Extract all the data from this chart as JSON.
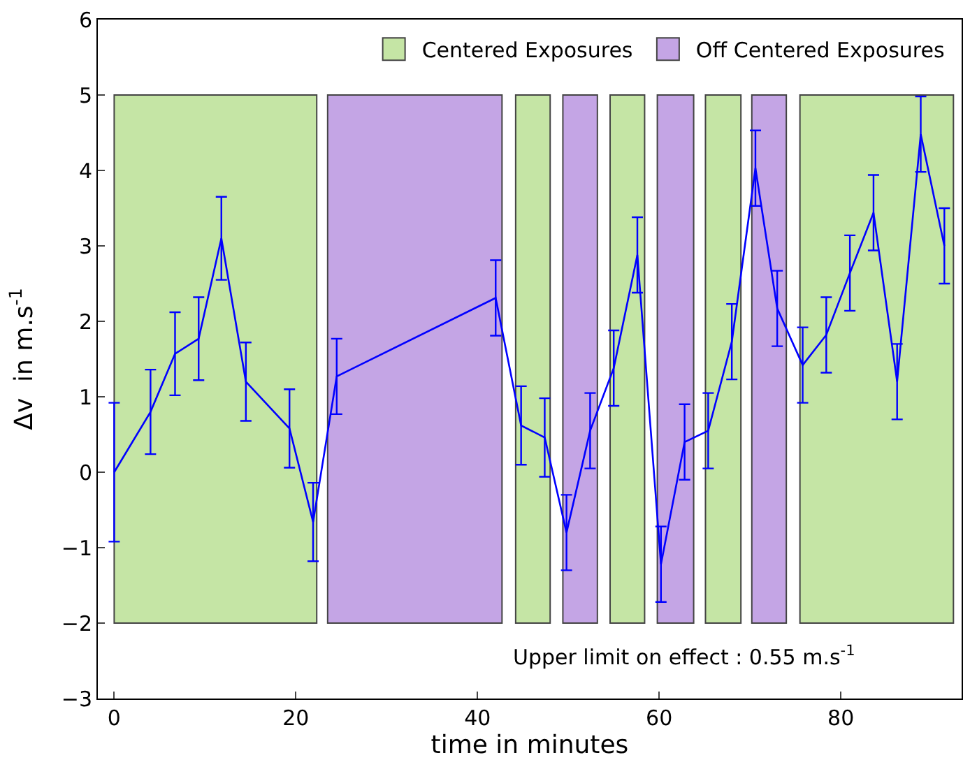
{
  "chart_data": {
    "type": "line",
    "xlabel": "time in minutes",
    "ylabel": "Δv  in m.s$^{-1}$",
    "x": [
      0,
      4,
      6.7,
      9.3,
      11.8,
      14.5,
      19.3,
      21.9,
      24.5,
      42,
      44.8,
      47.4,
      49.8,
      52.4,
      55,
      57.6,
      60.2,
      62.8,
      65.4,
      68,
      70.6,
      73,
      75.8,
      78.4,
      81,
      83.6,
      86.2,
      88.8,
      91.4
    ],
    "series": [
      {
        "color": "#0000ff",
        "values": [
          0,
          0.8,
          1.57,
          1.77,
          3.1,
          1.2,
          0.58,
          -0.66,
          1.27,
          2.31,
          0.62,
          0.46,
          -0.8,
          0.55,
          1.38,
          2.88,
          -1.22,
          0.4,
          0.55,
          1.73,
          4.03,
          2.17,
          1.42,
          1.82,
          2.64,
          3.44,
          1.2,
          4.48,
          3.0
        ],
        "errors": [
          0.92,
          0.56,
          0.55,
          0.55,
          0.55,
          0.52,
          0.52,
          0.52,
          0.5,
          0.5,
          0.52,
          0.52,
          0.5,
          0.5,
          0.5,
          0.5,
          0.5,
          0.5,
          0.5,
          0.5,
          0.5,
          0.5,
          0.5,
          0.5,
          0.5,
          0.5,
          0.5,
          0.5,
          0.5
        ]
      }
    ],
    "bands": [
      {
        "axis": "x",
        "from": 0,
        "to": 22.3,
        "label": "Centered Exposures",
        "color": "#c5e5a5"
      },
      {
        "axis": "x",
        "from": 23.5,
        "to": 42.7,
        "label": "Off Centered Exposures",
        "color": "#c4a5e5"
      },
      {
        "axis": "x",
        "from": 44.2,
        "to": 48,
        "color": "#c5e5a5"
      },
      {
        "axis": "x",
        "from": 49.4,
        "to": 53.2,
        "color": "#c4a5e5"
      },
      {
        "axis": "x",
        "from": 54.6,
        "to": 58.4,
        "color": "#c5e5a5"
      },
      {
        "axis": "x",
        "from": 59.8,
        "to": 63.8,
        "color": "#c4a5e5"
      },
      {
        "axis": "x",
        "from": 65.1,
        "to": 69,
        "color": "#c5e5a5"
      },
      {
        "axis": "x",
        "from": 70.2,
        "to": 74,
        "color": "#c4a5e5"
      },
      {
        "axis": "x",
        "from": 75.5,
        "to": 92.4,
        "color": "#c5e5a5"
      }
    ],
    "annotations": [
      "Upper limit on effect : 0.55 m.s$^{-1}$"
    ],
    "xlim": [
      -1.8,
      93.3
    ],
    "xticks": [
      0,
      20,
      40,
      60,
      80
    ],
    "ylim": [
      -3,
      6
    ],
    "yticks": [
      {
        "value": -3,
        "label": "−3"
      },
      {
        "value": -2,
        "label": "−2"
      },
      {
        "value": -1,
        "label": "−1"
      },
      0,
      1,
      2,
      3,
      4,
      5,
      6
    ],
    "grid": false,
    "legend": "top right",
    "marker": "none",
    "line_style": "solid"
  }
}
